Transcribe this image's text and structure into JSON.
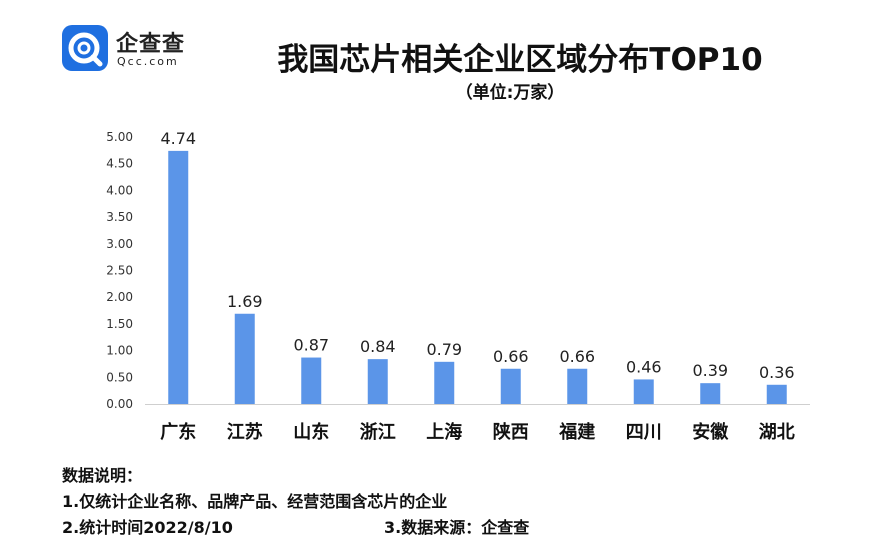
{
  "logo": {
    "name": "企查查",
    "url": "Qcc.com",
    "brand_color": "#1f6fe0"
  },
  "header": {
    "title": "我国芯片相关企业区域分布TOP10",
    "subtitle": "（单位:万家）"
  },
  "chart_data": {
    "type": "bar",
    "categories": [
      "广东",
      "江苏",
      "山东",
      "浙江",
      "上海",
      "陕西",
      "福建",
      "四川",
      "安徽",
      "湖北"
    ],
    "values": [
      4.74,
      1.69,
      0.87,
      0.84,
      0.79,
      0.66,
      0.66,
      0.46,
      0.39,
      0.36
    ],
    "value_labels": [
      "4.74",
      "1.69",
      "0.87",
      "0.84",
      "0.79",
      "0.66",
      "0.66",
      "0.46",
      "0.39",
      "0.36"
    ],
    "ylim": [
      0,
      5
    ],
    "yticks": [
      "0.00",
      "0.50",
      "1.00",
      "1.50",
      "2.00",
      "2.50",
      "3.00",
      "3.50",
      "4.00",
      "4.50",
      "5.00"
    ],
    "bar_color": "#5b95e8",
    "grid": false
  },
  "notes": {
    "heading": "数据说明：",
    "line1": "1.仅统计企业名称、品牌产品、经营范围含芯片的企业",
    "line2": "2.统计时间2022/8/10",
    "line3": "3.数据来源：企查查"
  }
}
